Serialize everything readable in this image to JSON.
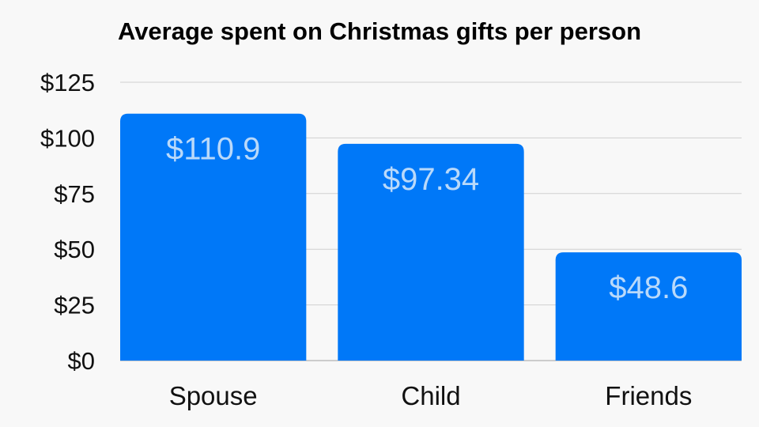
{
  "chart_data": {
    "type": "bar",
    "title": "Average spent on Christmas gifts per person",
    "categories": [
      "Spouse",
      "Child",
      "Friends"
    ],
    "values": [
      110.9,
      97.34,
      48.6
    ],
    "data_labels": [
      "$110.9",
      "$97.34",
      "$48.6"
    ],
    "xlabel": "",
    "ylabel": "",
    "ylim": [
      0,
      125
    ],
    "yticks": [
      0,
      25,
      50,
      75,
      100,
      125
    ],
    "ytick_labels": [
      "$0",
      "$25",
      "$50",
      "$75",
      "$100",
      "$125"
    ],
    "grid": true,
    "legend": "none",
    "colors": {
      "bar": "#0078f8",
      "data_label": "#b9d9fa",
      "grid": "#d0d0d0",
      "axis": "#a0a0a0"
    }
  }
}
